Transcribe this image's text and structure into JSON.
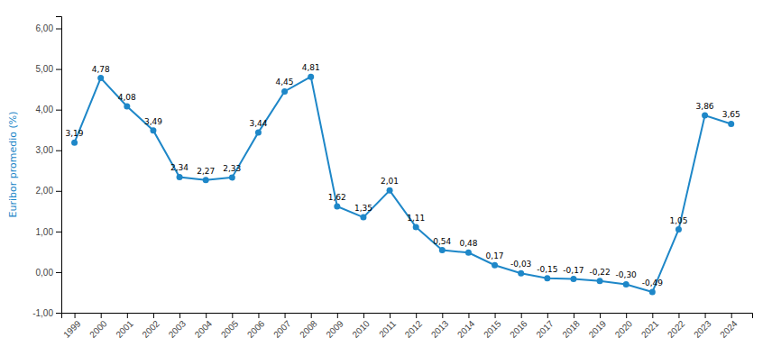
{
  "chart_data": {
    "type": "line",
    "x": [
      1999,
      2000,
      2001,
      2002,
      2003,
      2004,
      2005,
      2006,
      2007,
      2008,
      2009,
      2010,
      2011,
      2012,
      2013,
      2014,
      2015,
      2016,
      2017,
      2018,
      2019,
      2020,
      2021,
      2022,
      2023,
      2024
    ],
    "values": [
      3.19,
      4.78,
      4.08,
      3.49,
      2.34,
      2.27,
      2.33,
      3.44,
      4.45,
      4.81,
      1.62,
      1.35,
      2.01,
      1.11,
      0.54,
      0.48,
      0.17,
      -0.03,
      -0.15,
      -0.17,
      -0.22,
      -0.3,
      -0.49,
      1.05,
      3.86,
      3.65
    ],
    "value_labels": [
      "3,19",
      "4,78",
      "4,08",
      "3,49",
      "2,34",
      "2,27",
      "2,33",
      "3,44",
      "4,45",
      "4,81",
      "1,62",
      "1,35",
      "2,01",
      "1,11",
      "0,54",
      "0,48",
      "0,17",
      "-0,03",
      "-0,15",
      "-0,17",
      "-0,22",
      "-0,30",
      "-0,49",
      "1,05",
      "3,86",
      "3,65"
    ],
    "data_labels": true,
    "color": "#1e87c8",
    "marker": "circle",
    "ylabel": "Euribor promedio (%)",
    "xlim": [
      1998.5,
      2024.8
    ],
    "xticks": [
      1999,
      2000,
      2001,
      2002,
      2003,
      2004,
      2005,
      2006,
      2007,
      2008,
      2009,
      2010,
      2011,
      2012,
      2013,
      2014,
      2015,
      2016,
      2017,
      2018,
      2019,
      2020,
      2021,
      2022,
      2023,
      2024
    ],
    "ylim": [
      -1.0,
      6.3
    ],
    "yticks": [
      {
        "value": -1.0,
        "label": "-1,00"
      },
      {
        "value": 0.0,
        "label": "0,00"
      },
      {
        "value": 1.0,
        "label": "1,00"
      },
      {
        "value": 2.0,
        "label": "2,00"
      },
      {
        "value": 3.0,
        "label": "3,00"
      },
      {
        "value": 4.0,
        "label": "4,00"
      },
      {
        "value": 5.0,
        "label": "5,00"
      },
      {
        "value": 6.0,
        "label": "6,00"
      }
    ],
    "grid": false
  }
}
